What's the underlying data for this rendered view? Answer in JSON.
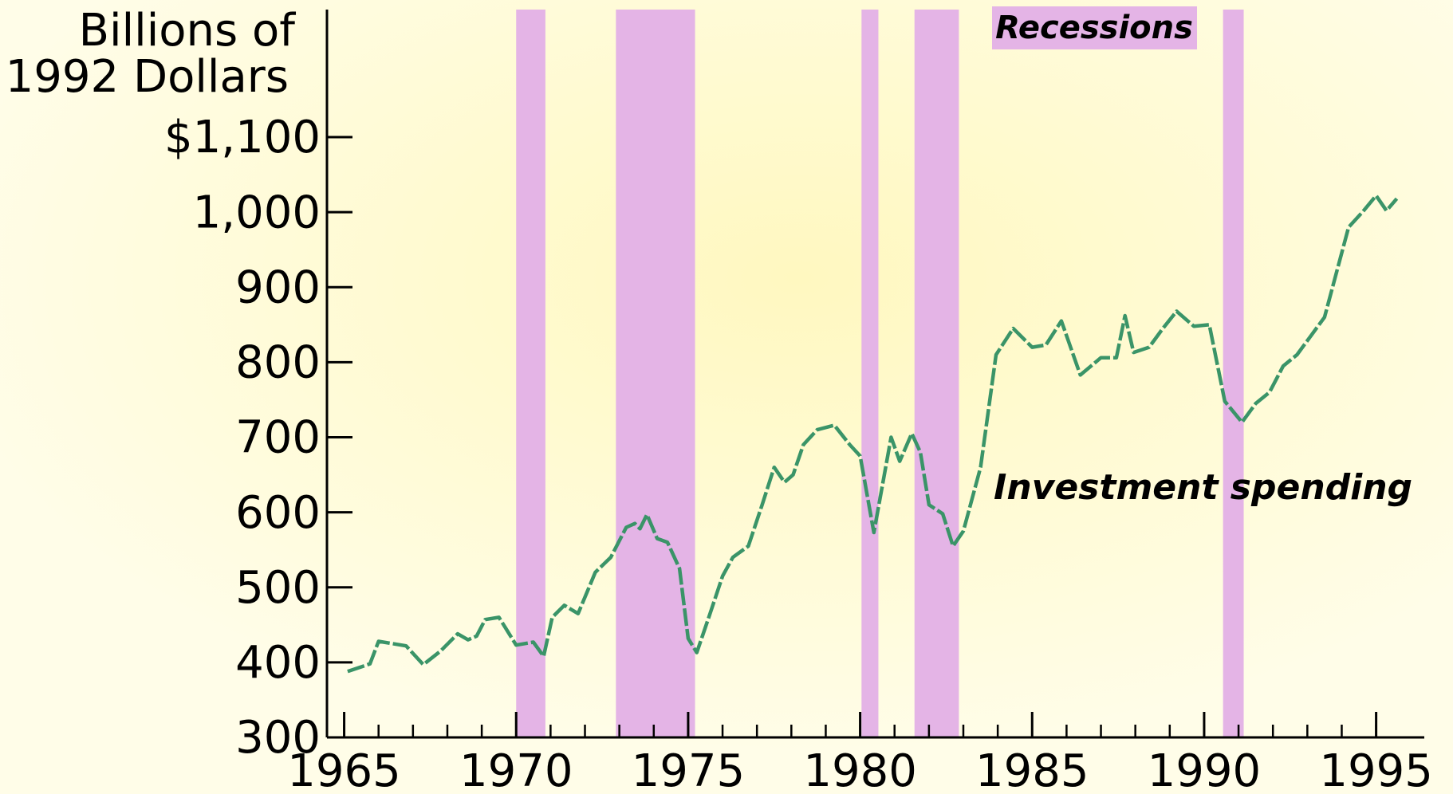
{
  "chart_data": {
    "type": "line",
    "title_lines": [
      "Billions of",
      "1992 Dollars"
    ],
    "x": [
      1965.1,
      1965.75,
      1966,
      1966.8,
      1967.3,
      1967.8,
      1968.3,
      1968.6,
      1968.85,
      1969.1,
      1969.5,
      1970,
      1970.5,
      1970.8,
      1971.05,
      1971.4,
      1971.8,
      1972.3,
      1972.75,
      1973.2,
      1973.45,
      1973.6,
      1973.8,
      1974.1,
      1974.4,
      1974.75,
      1975,
      1975.25,
      1975.6,
      1976,
      1976.3,
      1976.75,
      1977.15,
      1977.5,
      1977.8,
      1978.05,
      1978.35,
      1978.75,
      1979.25,
      1979.7,
      1980,
      1980.4,
      1980.9,
      1981.15,
      1981.5,
      1981.75,
      1982,
      1982.4,
      1982.7,
      1983,
      1983.5,
      1983.95,
      1984.45,
      1985,
      1985.4,
      1985.85,
      1986.4,
      1987,
      1987.45,
      1987.7,
      1987.95,
      1988.4,
      1988.8,
      1989.2,
      1989.7,
      1990.15,
      1990.6,
      1991.1,
      1991.5,
      1991.9,
      1992.3,
      1992.7,
      1993.1,
      1993.5,
      1994.2,
      1994.6,
      1995,
      1995.3,
      1995.6
    ],
    "series": [
      {
        "name": "Investment spending",
        "color": "#3a9468",
        "values": [
          388,
          398,
          428,
          422,
          397,
          415,
          438,
          430,
          435,
          457,
          460,
          423,
          427,
          408,
          460,
          476,
          465,
          520,
          540,
          580,
          585,
          578,
          597,
          565,
          560,
          525,
          432,
          413,
          460,
          515,
          540,
          555,
          610,
          660,
          640,
          650,
          690,
          710,
          716,
          690,
          675,
          573,
          700,
          668,
          705,
          680,
          610,
          598,
          555,
          575,
          660,
          810,
          845,
          820,
          823,
          855,
          783,
          806,
          806,
          862,
          813,
          820,
          845,
          868,
          848,
          850,
          748,
          720,
          745,
          760,
          795,
          810,
          835,
          860,
          980,
          1000,
          1022,
          1002,
          1018
        ]
      }
    ],
    "recessions": {
      "label": "Recessions",
      "color": "#e4b4e6",
      "periods": [
        [
          1970,
          1970.85
        ],
        [
          1972.9,
          1975.2
        ],
        [
          1980.04,
          1980.53
        ],
        [
          1981.58,
          1982.87
        ],
        [
          1990.55,
          1991.15
        ]
      ]
    },
    "xlim": [
      1964.5,
      1996.4
    ],
    "xticks": [
      1965,
      1970,
      1975,
      1980,
      1985,
      1990,
      1995
    ],
    "xminor_ticks": [
      1965,
      1966,
      1967,
      1968,
      1969,
      1970,
      1971,
      1972,
      1973,
      1974,
      1975,
      1976,
      1977,
      1978,
      1979,
      1980,
      1981,
      1982,
      1983,
      1984,
      1985,
      1986,
      1987,
      1988,
      1989,
      1990,
      1991,
      1992,
      1993,
      1994,
      1995
    ],
    "ylim": [
      300,
      1270
    ],
    "yticks": [
      300,
      400,
      500,
      600,
      700,
      800,
      900,
      {
        "value": 1000,
        "label": "1,000"
      },
      {
        "value": 1100,
        "label": "$1,100"
      }
    ],
    "grid": false
  }
}
